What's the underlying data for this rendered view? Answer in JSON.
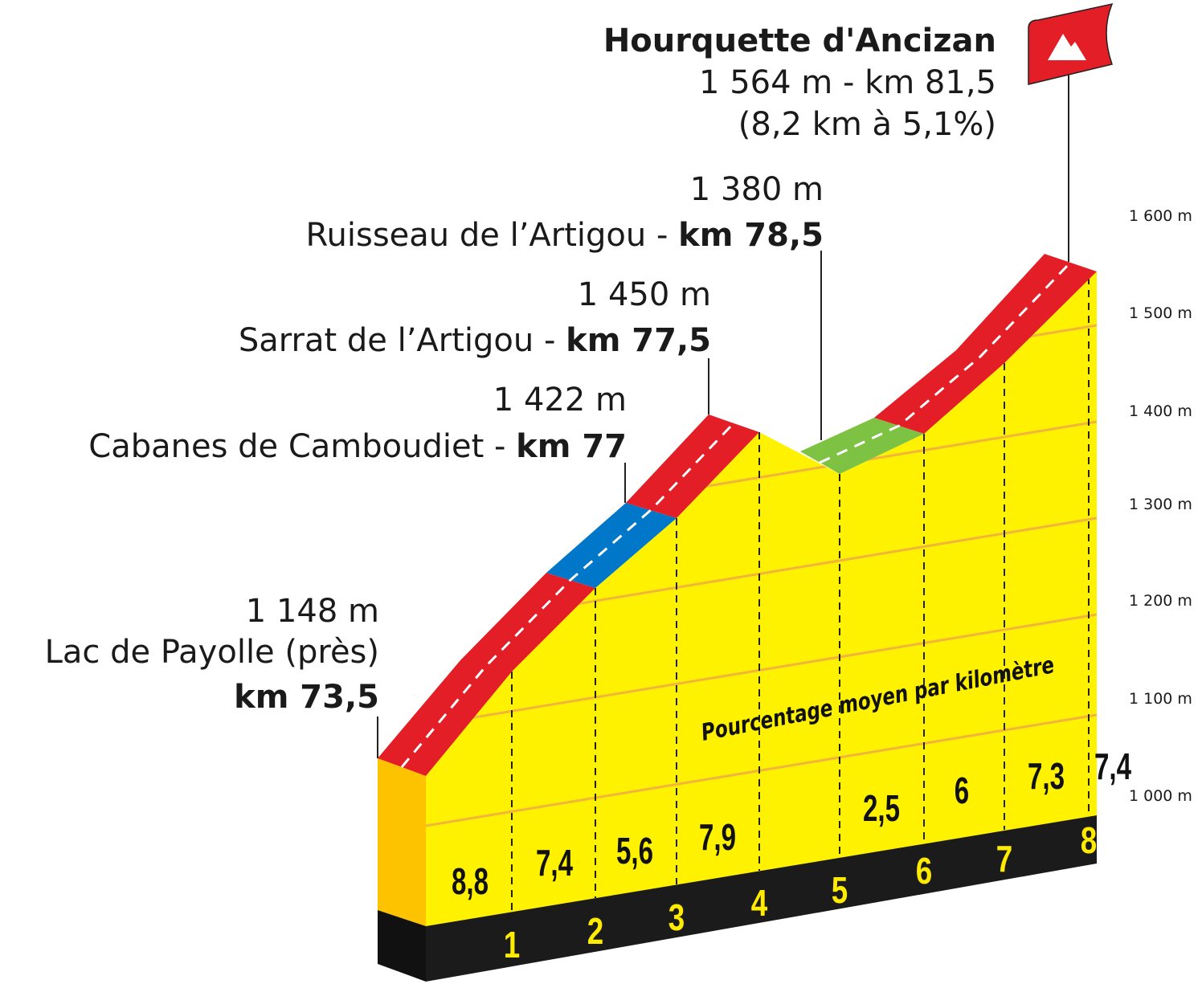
{
  "summit": {
    "name": "Hourquette d'Ancizan",
    "detail": "1 564 m - km 81,5",
    "climb": "(8,2 km à 5,1%)"
  },
  "waypoints": [
    {
      "altitude": "1 380 m",
      "name": "Ruisseau de l’Artigou - ",
      "km": "km 78,5"
    },
    {
      "altitude": "1 450 m",
      "name": "Sarrat de l’Artigou - ",
      "km": "km 77,5"
    },
    {
      "altitude": "1 422 m",
      "name": "Cabanes de Camboudiet - ",
      "km": "km 77"
    }
  ],
  "start": {
    "altitude": "1 148 m",
    "name": "Lac de Payolle (près)",
    "km": "km 73,5"
  },
  "altitude_scale": [
    "1 600 m",
    "1 500 m",
    "1 400 m",
    "1 300 m",
    "1 200 m",
    "1 100 m",
    "1 000 m"
  ],
  "gradient_caption": "Pourcentage moyen par kilomètre",
  "gradients": [
    "8,8",
    "7,4",
    "5,6",
    "7,9",
    "2,5",
    "6",
    "7,3",
    "7,4"
  ],
  "km_markers": [
    "1",
    "2",
    "3",
    "4",
    "5",
    "6",
    "7",
    "8"
  ]
}
